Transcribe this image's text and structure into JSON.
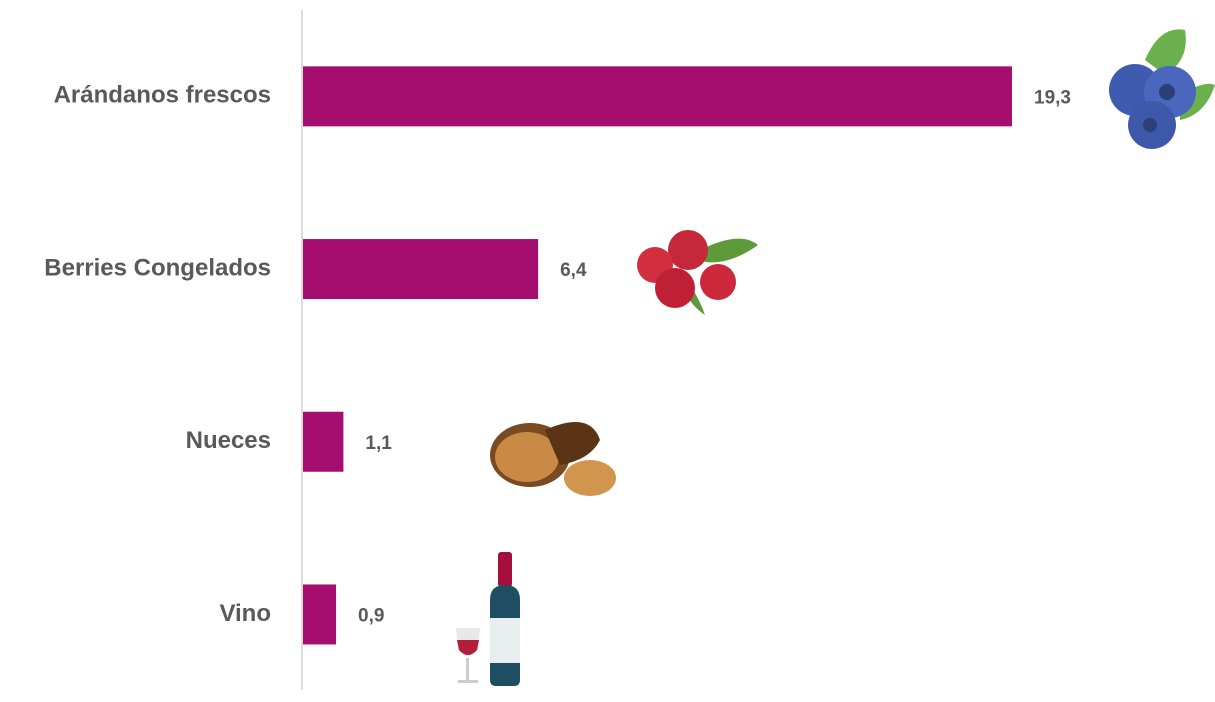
{
  "chart_data": {
    "type": "bar",
    "orientation": "horizontal",
    "categories": [
      "Arándanos frescos",
      "Berries Congelados",
      "Nueces",
      "Vino"
    ],
    "values": [
      19.3,
      6.4,
      1.1,
      0.9
    ],
    "value_labels": [
      "19,3",
      "6,4",
      "1,1",
      "0,9"
    ],
    "color": "#a50e6e"
  }
}
